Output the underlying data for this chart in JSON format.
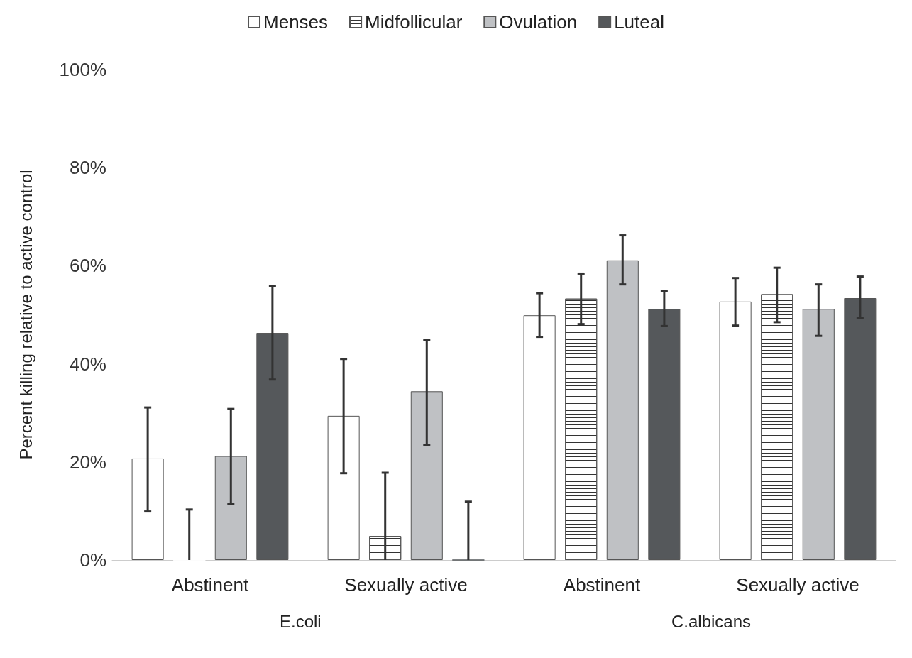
{
  "chart_data": {
    "type": "bar",
    "ylabel": "Percent killing relative to active control",
    "categories": [
      "Abstinent",
      "Sexually active",
      "Abstinent",
      "Sexually active"
    ],
    "annotations": [
      "E.coli",
      "C.albicans"
    ],
    "series": [
      {
        "name": "Menses",
        "color": "#ffffff",
        "values": [
          20.7,
          29.4,
          49.9,
          52.7
        ],
        "errors": [
          [
            9.9,
            31.1
          ],
          [
            17.7,
            41
          ],
          [
            45.5,
            54.4
          ],
          [
            47.8,
            57.5
          ]
        ]
      },
      {
        "name": "Midfollicular",
        "color": "#ffffff",
        "values": [
          0,
          4.9,
          53.3,
          54.2
        ],
        "errors": [
          [
            0,
            10.3
          ],
          [
            0,
            17.8
          ],
          [
            48.1,
            58.4
          ],
          [
            48.5,
            59.6
          ]
        ]
      },
      {
        "name": "Ovulation",
        "color": "#bfc1c4",
        "values": [
          21.2,
          34.4,
          61.1,
          51.2
        ],
        "errors": [
          [
            11.5,
            30.8
          ],
          [
            23.4,
            44.9
          ],
          [
            56.2,
            66.2
          ],
          [
            45.7,
            56.2
          ]
        ]
      },
      {
        "name": "Luteal",
        "color": "#55585b",
        "values": [
          46.3,
          0,
          51.2,
          53.4
        ],
        "errors": [
          [
            36.8,
            55.8
          ],
          [
            0,
            11.9
          ],
          [
            47.7,
            54.9
          ],
          [
            49.3,
            57.8
          ]
        ]
      }
    ],
    "ylim": [
      0,
      100
    ],
    "yticks": [
      {
        "value": 0,
        "label": "0%"
      },
      {
        "value": 20,
        "label": "20%"
      },
      {
        "value": 40,
        "label": "40%"
      },
      {
        "value": 60,
        "label": "60%"
      },
      {
        "value": 80,
        "label": "80%"
      },
      {
        "value": 100,
        "label": "100%"
      }
    ],
    "legend": "top",
    "grid": false
  }
}
